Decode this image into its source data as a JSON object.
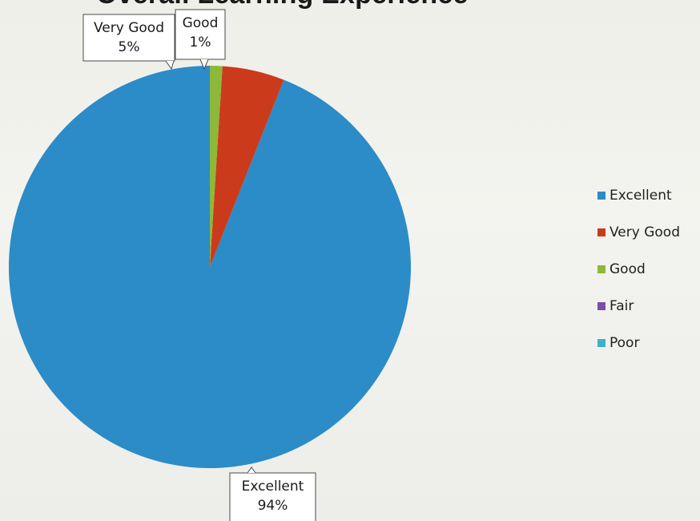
{
  "chart_data": {
    "type": "pie",
    "title": "Overall Learning Experience",
    "categories": [
      "Excellent",
      "Very Good",
      "Good",
      "Fair",
      "Poor"
    ],
    "values": [
      94,
      5,
      1,
      0,
      0
    ],
    "colors": [
      "#2b8cc7",
      "#cc3a1c",
      "#8db83a",
      "#7e4da6",
      "#3fb0c6"
    ],
    "data_labels": [
      {
        "name": "Excellent",
        "text": "94%"
      },
      {
        "name": "Very Good",
        "text": "5%"
      },
      {
        "name": "Good",
        "text": "1%"
      }
    ],
    "legend": {
      "position": "right",
      "entries": [
        "Excellent",
        "Very Good",
        "Good",
        "Fair",
        "Poor"
      ]
    }
  }
}
